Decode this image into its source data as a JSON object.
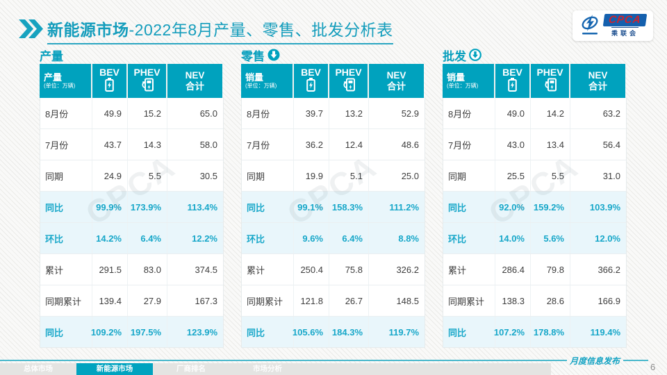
{
  "header": {
    "title_bold": "新能源市场",
    "title_rest": "-2022年8月产量、零售、批发分析表",
    "logo": {
      "brand": "CPCA",
      "sub": "乘联会"
    }
  },
  "colors": {
    "accent_teal": "#00A2BE",
    "highlight_row_bg": "#E9F6FB",
    "highlight_text": "#17A7C9",
    "logo_blue": "#1460AE",
    "logo_red": "#D3222A"
  },
  "watermark": {
    "text": "CPCA"
  },
  "tables": [
    {
      "section_title": "产量",
      "arrow_icon": "none",
      "corner": {
        "label": "产量",
        "unit": "(单位：万辆)"
      },
      "columns": {
        "bev": "BEV",
        "phev": "PHEV",
        "total_l1": "NEV",
        "total_l2": "合计"
      },
      "rows": [
        {
          "label": "8月份",
          "values": [
            "49.9",
            "15.2",
            "65.0"
          ],
          "highlight": false
        },
        {
          "label": "7月份",
          "values": [
            "43.7",
            "14.3",
            "58.0"
          ],
          "highlight": false
        },
        {
          "label": "同期",
          "values": [
            "24.9",
            "5.5",
            "30.5"
          ],
          "highlight": false
        },
        {
          "label": "同比",
          "values": [
            "99.9%",
            "173.9%",
            "113.4%"
          ],
          "highlight": true
        },
        {
          "label": "环比",
          "values": [
            "14.2%",
            "6.4%",
            "12.2%"
          ],
          "highlight": true
        },
        {
          "label": "累计",
          "values": [
            "291.5",
            "83.0",
            "374.5"
          ],
          "highlight": false
        },
        {
          "label": "同期累计",
          "values": [
            "139.4",
            "27.9",
            "167.3"
          ],
          "highlight": false
        },
        {
          "label": "同比",
          "values": [
            "109.2%",
            "197.5%",
            "123.9%"
          ],
          "highlight": true
        }
      ]
    },
    {
      "section_title": "零售",
      "arrow_icon": "filled-down-arrow",
      "corner": {
        "label": "销量",
        "unit": "(单位：万辆)"
      },
      "columns": {
        "bev": "BEV",
        "phev": "PHEV",
        "total_l1": "NEV",
        "total_l2": "合计"
      },
      "rows": [
        {
          "label": "8月份",
          "values": [
            "39.7",
            "13.2",
            "52.9"
          ],
          "highlight": false
        },
        {
          "label": "7月份",
          "values": [
            "36.2",
            "12.4",
            "48.6"
          ],
          "highlight": false
        },
        {
          "label": "同期",
          "values": [
            "19.9",
            "5.1",
            "25.0"
          ],
          "highlight": false
        },
        {
          "label": "同比",
          "values": [
            "99.1%",
            "158.3%",
            "111.2%"
          ],
          "highlight": true
        },
        {
          "label": "环比",
          "values": [
            "9.6%",
            "6.4%",
            "8.8%"
          ],
          "highlight": true
        },
        {
          "label": "累计",
          "values": [
            "250.4",
            "75.8",
            "326.2"
          ],
          "highlight": false
        },
        {
          "label": "同期累计",
          "values": [
            "121.8",
            "26.7",
            "148.5"
          ],
          "highlight": false
        },
        {
          "label": "同比",
          "values": [
            "105.6%",
            "184.3%",
            "119.7%"
          ],
          "highlight": true
        }
      ]
    },
    {
      "section_title": "批发",
      "arrow_icon": "outline-down-arrow",
      "corner": {
        "label": "销量",
        "unit": "(单位：万辆)"
      },
      "columns": {
        "bev": "BEV",
        "phev": "PHEV",
        "total_l1": "NEV",
        "total_l2": "合计"
      },
      "rows": [
        {
          "label": "8月份",
          "values": [
            "49.0",
            "14.2",
            "63.2"
          ],
          "highlight": false
        },
        {
          "label": "7月份",
          "values": [
            "43.0",
            "13.4",
            "56.4"
          ],
          "highlight": false
        },
        {
          "label": "同期",
          "values": [
            "25.5",
            "5.5",
            "31.0"
          ],
          "highlight": false
        },
        {
          "label": "同比",
          "values": [
            "92.0%",
            "159.2%",
            "103.9%"
          ],
          "highlight": true
        },
        {
          "label": "环比",
          "values": [
            "14.0%",
            "5.6%",
            "12.0%"
          ],
          "highlight": true
        },
        {
          "label": "累计",
          "values": [
            "286.4",
            "79.8",
            "366.2"
          ],
          "highlight": false
        },
        {
          "label": "同期累计",
          "values": [
            "138.3",
            "28.6",
            "166.9"
          ],
          "highlight": false
        },
        {
          "label": "同比",
          "values": [
            "107.2%",
            "178.8%",
            "119.4%"
          ],
          "highlight": true
        }
      ]
    }
  ],
  "footer": {
    "caption": "月度信息发布",
    "page_number": "6",
    "tabs": [
      {
        "label": "总体市场",
        "active": false
      },
      {
        "label": "新能源市场",
        "active": true
      },
      {
        "label": "厂商排名",
        "active": false
      },
      {
        "label": "市场分析",
        "active": false
      }
    ]
  }
}
